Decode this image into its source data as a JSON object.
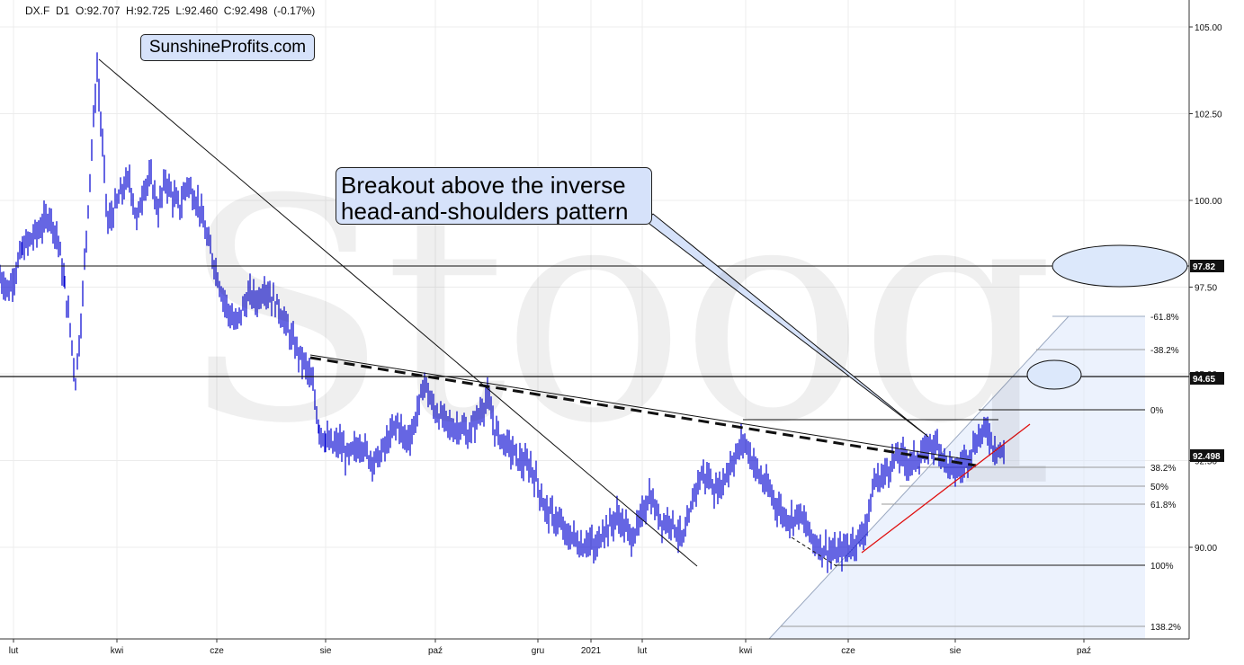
{
  "header": {
    "ohlc_text": "DX.F  D1  O:92.707  H:92.725  L:92.460  C:92.498  (-0.17%)"
  },
  "branding": {
    "site": "SunshineProfits.com",
    "watermark": "Stooq"
  },
  "annotation": {
    "line1": "Breakout above the inverse",
    "line2": "head-and-shoulders pattern"
  },
  "colors": {
    "price_bars": "#0000d0",
    "trend_line": "#e01010",
    "callout_fill": "#d6e2fa",
    "fib_fill": "#dce8fb"
  },
  "chart_data": {
    "type": "line",
    "instrument": "DX.F",
    "timeframe": "D1",
    "ohlc": {
      "open": 92.707,
      "high": 92.725,
      "low": 92.46,
      "close": 92.498,
      "change_pct": -0.17
    },
    "y_axis": {
      "ticks": [
        "105.00",
        "102.50",
        "100.00",
        "97.50",
        "95.00",
        "92.50",
        "90.00"
      ],
      "range": [
        87.5,
        105.7
      ]
    },
    "x_axis": {
      "ticks": [
        "lut",
        "kwi",
        "cze",
        "sie",
        "paź",
        "gru",
        "2021",
        "lut",
        "kwi",
        "cze",
        "sie",
        "paź"
      ]
    },
    "grid": true,
    "series": [
      {
        "values": [
          [
            0,
            97.8
          ],
          [
            10,
            97.4
          ],
          [
            25,
            98.6
          ],
          [
            45,
            99.2
          ],
          [
            55,
            99.6
          ],
          [
            65,
            98.8
          ],
          [
            72,
            97.5
          ],
          [
            78,
            96.3
          ],
          [
            84,
            94.8
          ],
          [
            90,
            96.5
          ],
          [
            96,
            99.0
          ],
          [
            102,
            101.5
          ],
          [
            108,
            103.8
          ],
          [
            114,
            101.5
          ],
          [
            120,
            99.3
          ],
          [
            128,
            99.8
          ],
          [
            136,
            100.3
          ],
          [
            144,
            100.6
          ],
          [
            152,
            99.4
          ],
          [
            160,
            100.4
          ],
          [
            168,
            100.6
          ],
          [
            176,
            99.7
          ],
          [
            184,
            100.6
          ],
          [
            192,
            100.1
          ],
          [
            200,
            99.8
          ],
          [
            208,
            100.5
          ],
          [
            214,
            100.2
          ],
          [
            222,
            99.8
          ],
          [
            230,
            98.9
          ],
          [
            238,
            98.2
          ],
          [
            246,
            97.4
          ],
          [
            254,
            96.8
          ],
          [
            262,
            96.4
          ],
          [
            270,
            96.9
          ],
          [
            278,
            97.3
          ],
          [
            286,
            97.1
          ],
          [
            294,
            97.5
          ],
          [
            302,
            97.2
          ],
          [
            310,
            96.9
          ],
          [
            318,
            96.4
          ],
          [
            326,
            95.9
          ],
          [
            334,
            95.5
          ],
          [
            342,
            95.1
          ],
          [
            348,
            94.6
          ],
          [
            355,
            93.4
          ],
          [
            362,
            93.1
          ],
          [
            370,
            92.9
          ],
          [
            378,
            93.0
          ],
          [
            386,
            92.6
          ],
          [
            394,
            92.8
          ],
          [
            402,
            93.0
          ],
          [
            410,
            92.6
          ],
          [
            418,
            92.5
          ],
          [
            426,
            92.8
          ],
          [
            434,
            93.2
          ],
          [
            442,
            93.6
          ],
          [
            450,
            93.1
          ],
          [
            458,
            93.3
          ],
          [
            466,
            94.1
          ],
          [
            472,
            94.8
          ],
          [
            480,
            94.1
          ],
          [
            488,
            93.8
          ],
          [
            496,
            93.6
          ],
          [
            504,
            93.4
          ],
          [
            512,
            93.5
          ],
          [
            520,
            93.2
          ],
          [
            528,
            93.6
          ],
          [
            536,
            94.0
          ],
          [
            542,
            94.3
          ],
          [
            550,
            93.4
          ],
          [
            558,
            93.1
          ],
          [
            566,
            92.9
          ],
          [
            574,
            92.6
          ],
          [
            582,
            92.4
          ],
          [
            590,
            92.3
          ],
          [
            598,
            91.8
          ],
          [
            606,
            91.1
          ],
          [
            614,
            90.9
          ],
          [
            622,
            90.7
          ],
          [
            630,
            90.3
          ],
          [
            638,
            90.3
          ],
          [
            646,
            90.0
          ],
          [
            654,
            90.2
          ],
          [
            662,
            89.9
          ],
          [
            670,
            90.5
          ],
          [
            678,
            90.6
          ],
          [
            686,
            90.9
          ],
          [
            694,
            90.6
          ],
          [
            702,
            90.3
          ],
          [
            710,
            90.6
          ],
          [
            716,
            91.1
          ],
          [
            722,
            91.5
          ],
          [
            730,
            91.0
          ],
          [
            738,
            90.7
          ],
          [
            746,
            90.8
          ],
          [
            754,
            90.4
          ],
          [
            760,
            90.2
          ],
          [
            766,
            90.8
          ],
          [
            772,
            91.6
          ],
          [
            780,
            92.1
          ],
          [
            788,
            92.0
          ],
          [
            796,
            91.6
          ],
          [
            804,
            91.9
          ],
          [
            812,
            92.4
          ],
          [
            820,
            92.7
          ],
          [
            826,
            93.1
          ],
          [
            832,
            92.8
          ],
          [
            840,
            92.3
          ],
          [
            848,
            91.9
          ],
          [
            856,
            91.6
          ],
          [
            864,
            91.2
          ],
          [
            872,
            90.9
          ],
          [
            880,
            90.8
          ],
          [
            888,
            91.0
          ],
          [
            896,
            90.6
          ],
          [
            904,
            90.2
          ],
          [
            912,
            90.0
          ],
          [
            920,
            89.9
          ],
          [
            928,
            89.8
          ],
          [
            936,
            89.9
          ],
          [
            944,
            90.0
          ],
          [
            952,
            90.2
          ],
          [
            960,
            90.4
          ],
          [
            966,
            91.0
          ],
          [
            972,
            91.9
          ],
          [
            980,
            92.0
          ],
          [
            988,
            92.3
          ],
          [
            996,
            92.6
          ],
          [
            1004,
            92.6
          ],
          [
            1012,
            92.4
          ],
          [
            1020,
            92.6
          ],
          [
            1028,
            92.7
          ],
          [
            1036,
            93.0
          ],
          [
            1044,
            92.9
          ],
          [
            1052,
            92.4
          ],
          [
            1060,
            92.2
          ],
          [
            1068,
            92.3
          ],
          [
            1076,
            92.6
          ],
          [
            1084,
            93.0
          ],
          [
            1092,
            93.3
          ],
          [
            1098,
            93.4
          ],
          [
            1104,
            92.9
          ],
          [
            1112,
            92.8
          ],
          [
            1118,
            92.5
          ]
        ]
      }
    ],
    "price_labels": [
      "97.82",
      "94.65",
      "92.498"
    ],
    "fibonacci_levels": [
      "-61.8%",
      "-38.2%",
      "0%",
      "38.2%",
      "50%",
      "61.8%",
      "100%",
      "138.2%"
    ]
  }
}
